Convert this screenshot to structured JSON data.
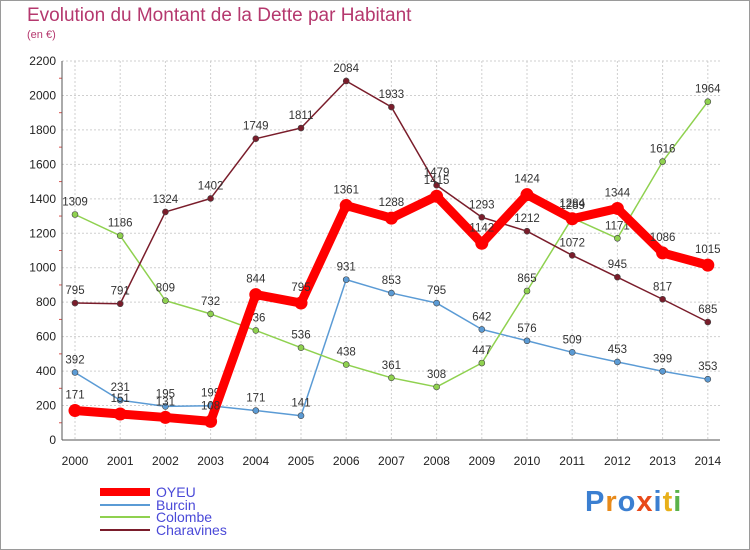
{
  "chart_data": {
    "type": "line",
    "title": "Evolution du Montant de la Dette par Habitant",
    "subtitle": "(en €)",
    "x": [
      2000,
      2001,
      2002,
      2003,
      2004,
      2005,
      2006,
      2007,
      2008,
      2009,
      2010,
      2011,
      2012,
      2013,
      2014
    ],
    "ylim": [
      0,
      2200
    ],
    "yticks": [
      0,
      200,
      400,
      600,
      800,
      1000,
      1200,
      1400,
      1600,
      1800,
      2000,
      2200
    ],
    "grid": true,
    "legend_position": "bottom-left",
    "series": [
      {
        "name": "OYEU",
        "color": "#ff0000",
        "values": [
          171,
          151,
          131,
          108,
          844,
          795,
          1361,
          1288,
          1415,
          1142,
          1424,
          1284,
          1344,
          1086,
          1015
        ]
      },
      {
        "name": "Burcin",
        "color": "#5b9bd5",
        "values": [
          392,
          231,
          195,
          199,
          171,
          141,
          931,
          853,
          795,
          642,
          576,
          509,
          453,
          399,
          353
        ]
      },
      {
        "name": "Colombe",
        "color": "#8fd14f",
        "values": [
          1309,
          1186,
          809,
          732,
          636,
          536,
          438,
          361,
          308,
          447,
          865,
          1289,
          1171,
          1616,
          1964
        ]
      },
      {
        "name": "Charavines",
        "color": "#7a1d2b",
        "values": [
          795,
          791,
          1324,
          1402,
          1749,
          1811,
          2084,
          1933,
          1479,
          1293,
          1212,
          1072,
          945,
          817,
          685
        ]
      }
    ]
  },
  "labels": {
    "title": "Evolution du Montant de la Dette par Habitant",
    "unit": "(en €)"
  },
  "logo": {
    "text": "Proxiti",
    "colors": [
      "#3b7fd1",
      "#e88a1a",
      "#3b7fd1",
      "#e84a1a",
      "#3b7fd1",
      "#e8b01a",
      "#5ab24a"
    ]
  }
}
